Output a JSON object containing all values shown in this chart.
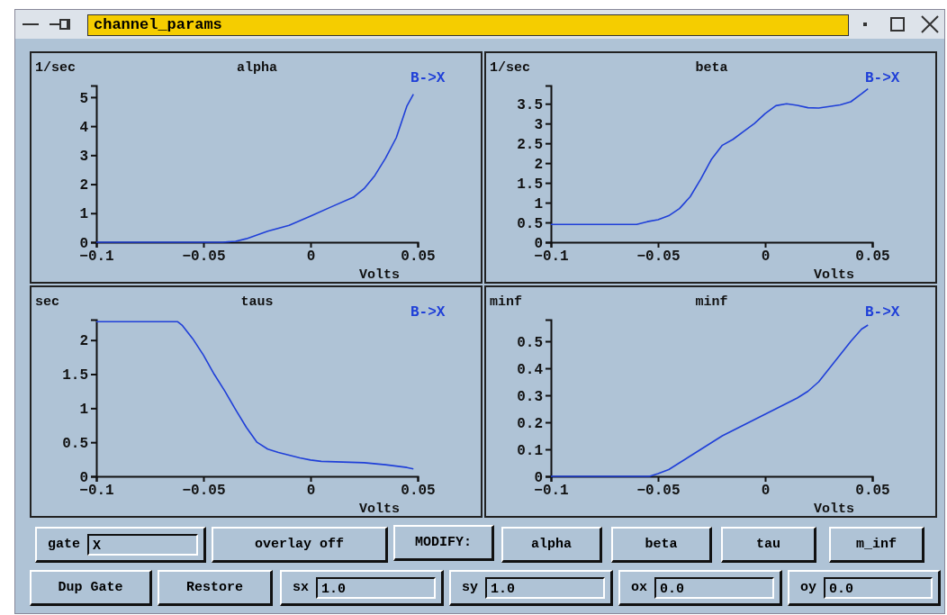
{
  "chart_data": [
    {
      "type": "line",
      "title": "alpha",
      "ylabel": "1/sec",
      "xlabel": "Volts",
      "xlim": [
        -0.1,
        0.05
      ],
      "xticks": [
        -0.1,
        -0.05,
        0,
        0.05
      ],
      "ylim": [
        0,
        5.4
      ],
      "yticks": [
        0,
        1,
        2,
        3,
        4,
        5
      ],
      "series": [
        {
          "name": "B->X",
          "color": "#1f3fd8",
          "x": [
            -0.1,
            -0.041,
            -0.035,
            -0.03,
            -0.02,
            -0.01,
            0,
            0.01,
            0.02,
            0.025,
            0.03,
            0.035,
            0.04,
            0.045,
            0.048
          ],
          "values": [
            0,
            0,
            0.03,
            0.12,
            0.38,
            0.58,
            0.9,
            1.23,
            1.55,
            1.85,
            2.3,
            2.9,
            3.6,
            4.7,
            5.1
          ]
        }
      ]
    },
    {
      "type": "line",
      "title": "beta",
      "ylabel": "1/sec",
      "xlabel": "Volts",
      "xlim": [
        -0.1,
        0.05
      ],
      "xticks": [
        -0.1,
        -0.05,
        0,
        0.05
      ],
      "ylim": [
        0,
        3.96
      ],
      "yticks": [
        0,
        0.5,
        1,
        1.5,
        2,
        2.5,
        3,
        3.5
      ],
      "series": [
        {
          "name": "B->X",
          "color": "#1f3fd8",
          "x": [
            -0.1,
            -0.06,
            -0.055,
            -0.05,
            -0.045,
            -0.04,
            -0.035,
            -0.03,
            -0.025,
            -0.02,
            -0.015,
            -0.01,
            -0.005,
            0,
            0.005,
            0.01,
            0.015,
            0.02,
            0.025,
            0.03,
            0.035,
            0.04,
            0.045,
            0.048
          ],
          "values": [
            0.45,
            0.45,
            0.52,
            0.57,
            0.67,
            0.85,
            1.15,
            1.6,
            2.1,
            2.45,
            2.6,
            2.8,
            3.0,
            3.25,
            3.45,
            3.5,
            3.46,
            3.4,
            3.39,
            3.43,
            3.47,
            3.55,
            3.75,
            3.88
          ]
        }
      ]
    },
    {
      "type": "line",
      "title": "taus",
      "ylabel": "sec",
      "xlabel": "Volts",
      "xlim": [
        -0.1,
        0.05
      ],
      "xticks": [
        -0.1,
        -0.05,
        0,
        0.05
      ],
      "ylim": [
        0,
        2.3
      ],
      "yticks": [
        0,
        0.5,
        1,
        1.5,
        2
      ],
      "series": [
        {
          "name": "B->X",
          "color": "#1f3fd8",
          "x": [
            -0.1,
            -0.062,
            -0.06,
            -0.055,
            -0.05,
            -0.045,
            -0.04,
            -0.035,
            -0.03,
            -0.025,
            -0.02,
            -0.015,
            -0.01,
            -0.005,
            0,
            0.005,
            0.015,
            0.025,
            0.035,
            0.045,
            0.048
          ],
          "values": [
            2.27,
            2.27,
            2.22,
            2.02,
            1.78,
            1.5,
            1.25,
            0.98,
            0.72,
            0.5,
            0.4,
            0.35,
            0.31,
            0.27,
            0.24,
            0.22,
            0.21,
            0.2,
            0.17,
            0.13,
            0.11
          ]
        }
      ]
    },
    {
      "type": "line",
      "title": "minf",
      "ylabel": "minf",
      "xlabel": "Volts",
      "xlim": [
        -0.1,
        0.05
      ],
      "xticks": [
        -0.1,
        -0.05,
        0,
        0.05
      ],
      "ylim": [
        0,
        0.58
      ],
      "yticks": [
        0,
        0.1,
        0.2,
        0.3,
        0.4,
        0.5
      ],
      "series": [
        {
          "name": "B->X",
          "color": "#1f3fd8",
          "x": [
            -0.1,
            -0.054,
            -0.05,
            -0.045,
            -0.04,
            -0.035,
            -0.03,
            -0.025,
            -0.02,
            -0.015,
            -0.01,
            -0.005,
            0,
            0.005,
            0.01,
            0.015,
            0.02,
            0.025,
            0.03,
            0.035,
            0.04,
            0.045,
            0.048
          ],
          "values": [
            0,
            0,
            0.01,
            0.025,
            0.05,
            0.075,
            0.1,
            0.125,
            0.15,
            0.17,
            0.19,
            0.21,
            0.23,
            0.25,
            0.27,
            0.29,
            0.315,
            0.35,
            0.4,
            0.45,
            0.5,
            0.545,
            0.56
          ]
        }
      ]
    },
    {
      "type": "other",
      "title": "channel_params",
      "annotations": [
        "gate",
        "X",
        "overlay off",
        "MODIFY:",
        "alpha",
        "beta",
        "tau",
        "m_inf",
        "Dup Gate",
        "Restore",
        "sx",
        "1.0",
        "sy",
        "1.0",
        "ox",
        "0.0",
        "oy",
        "0.0"
      ]
    }
  ]
}
